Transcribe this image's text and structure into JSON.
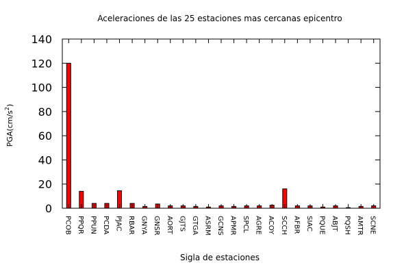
{
  "chart_data": {
    "type": "bar",
    "title": "Aceleraciones de las 25 estaciones mas cercanas epicentro",
    "xlabel": "Sigla de estaciones",
    "ylabel": "PGA(cm/s",
    "ylabel_sup": "2",
    "ylabel_close": ")",
    "ylim": [
      0,
      140
    ],
    "yticks": [
      "0",
      "20",
      "40",
      "60",
      "80",
      "100",
      "120",
      "140"
    ],
    "grid": false,
    "legend": "none",
    "bar_color": "#ff0000",
    "categories": [
      "PCOB",
      "PPQR",
      "PPUN",
      "PCDA",
      "PJAC",
      "RBAR",
      "GNYA",
      "GNSR",
      "AORT",
      "GJTS",
      "GTGA",
      "ASRM",
      "GCNS",
      "APMR",
      "SPCL",
      "AGRE",
      "ACOY",
      "SCCH",
      "AFBR",
      "SIAC",
      "PQUE",
      "ABJT",
      "PQSH",
      "AMTR",
      "SCNE"
    ],
    "values": [
      120,
      14,
      4,
      4,
      14.5,
      4,
      1.5,
      3.5,
      2,
      2,
      1.5,
      1,
      2,
      1.5,
      2,
      2,
      2.5,
      16,
      2,
      2,
      1,
      2,
      0.5,
      1.5,
      2
    ]
  }
}
